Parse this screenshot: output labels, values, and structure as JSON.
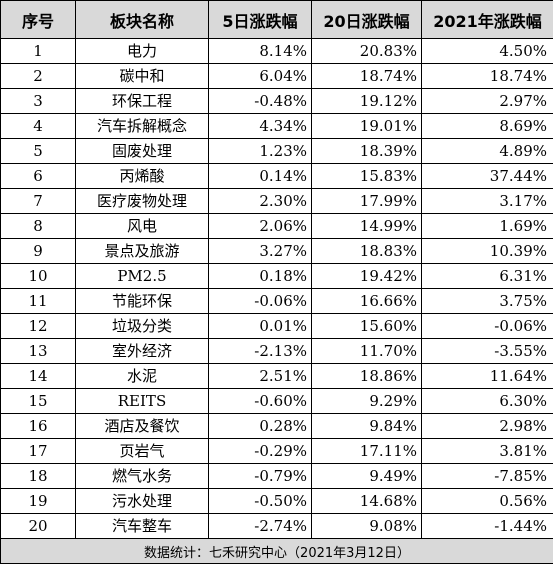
{
  "chart_data": {
    "type": "table",
    "columns": [
      "序号",
      "板块名称",
      "5日涨跌幅",
      "20日涨跌幅",
      "2021年涨跌幅"
    ],
    "rows": [
      [
        "1",
        "电力",
        "8.14%",
        "20.83%",
        "4.50%"
      ],
      [
        "2",
        "碳中和",
        "6.04%",
        "18.74%",
        "18.74%"
      ],
      [
        "3",
        "环保工程",
        "-0.48%",
        "19.12%",
        "2.97%"
      ],
      [
        "4",
        "汽车拆解概念",
        "4.34%",
        "19.01%",
        "8.69%"
      ],
      [
        "5",
        "固废处理",
        "1.23%",
        "18.39%",
        "4.89%"
      ],
      [
        "6",
        "丙烯酸",
        "0.14%",
        "15.83%",
        "37.44%"
      ],
      [
        "7",
        "医疗废物处理",
        "2.30%",
        "17.99%",
        "3.17%"
      ],
      [
        "8",
        "风电",
        "2.06%",
        "14.99%",
        "1.69%"
      ],
      [
        "9",
        "景点及旅游",
        "3.27%",
        "18.83%",
        "10.39%"
      ],
      [
        "10",
        "PM2.5",
        "0.18%",
        "19.42%",
        "6.31%"
      ],
      [
        "11",
        "节能环保",
        "-0.06%",
        "16.66%",
        "3.75%"
      ],
      [
        "12",
        "垃圾分类",
        "0.01%",
        "15.60%",
        "-0.06%"
      ],
      [
        "13",
        "室外经济",
        "-2.13%",
        "11.70%",
        "-3.55%"
      ],
      [
        "14",
        "水泥",
        "2.51%",
        "18.86%",
        "11.64%"
      ],
      [
        "15",
        "REITS",
        "-0.60%",
        "9.29%",
        "6.30%"
      ],
      [
        "16",
        "酒店及餐饮",
        "0.28%",
        "9.84%",
        "2.98%"
      ],
      [
        "17",
        "页岩气",
        "-0.29%",
        "17.11%",
        "3.81%"
      ],
      [
        "18",
        "燃气水务",
        "-0.79%",
        "9.49%",
        "-7.85%"
      ],
      [
        "19",
        "污水处理",
        "-0.50%",
        "14.68%",
        "0.56%"
      ],
      [
        "20",
        "汽车整车",
        "-2.74%",
        "9.08%",
        "-1.44%"
      ]
    ],
    "footer": "数据统计：七禾研究中心（2021年3月12日）"
  }
}
